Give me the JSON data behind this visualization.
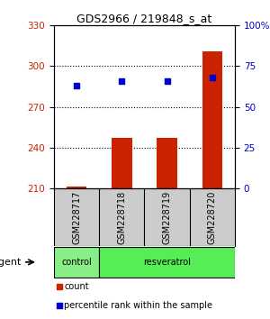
{
  "title": "GDS2966 / 219848_s_at",
  "samples": [
    "GSM228717",
    "GSM228718",
    "GSM228719",
    "GSM228720"
  ],
  "count_values": [
    211,
    247,
    247,
    311
  ],
  "percentile_values": [
    63,
    66,
    66,
    68
  ],
  "left_ylim": [
    210,
    330
  ],
  "right_ylim": [
    0,
    100
  ],
  "left_yticks": [
    210,
    240,
    270,
    300,
    330
  ],
  "right_yticks": [
    0,
    25,
    50,
    75,
    100
  ],
  "right_yticklabels": [
    "0",
    "25",
    "50",
    "75",
    "100%"
  ],
  "bar_color": "#cc2200",
  "scatter_color": "#0000cc",
  "bar_bottom": 210,
  "control_color": "#88ee88",
  "resveratrol_color": "#55ee55",
  "bg_color": "#ffffff",
  "sample_label_bg": "#cccccc",
  "title_fontsize": 9,
  "tick_fontsize": 7.5,
  "label_fontsize": 7,
  "agent_fontsize": 8
}
